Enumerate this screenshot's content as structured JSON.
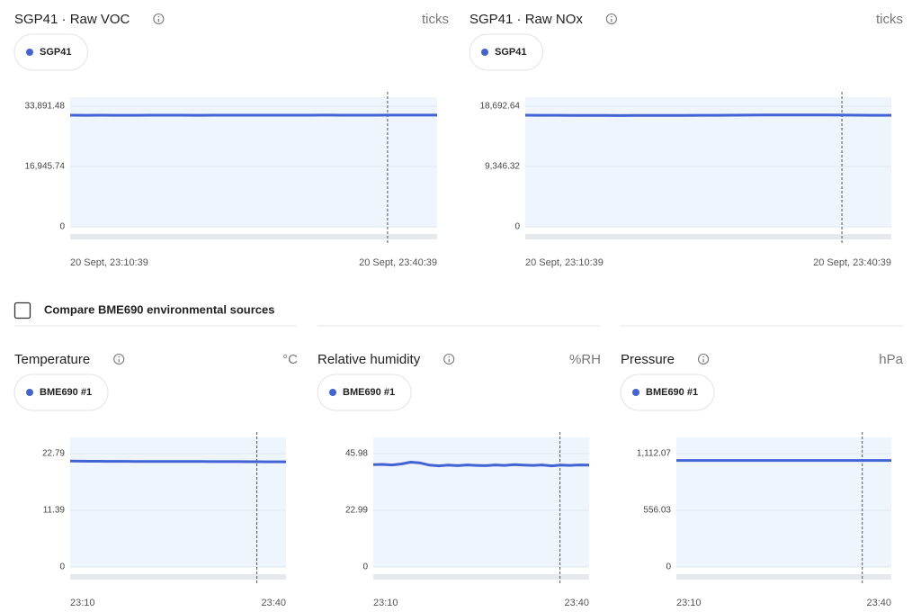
{
  "compare_label": "Compare BME690 environmental sources",
  "chart_data": [
    {
      "type": "line",
      "title": "SGP41 · Raw VOC",
      "unit": "ticks",
      "categories": [
        "20 Sept, 23:10:39",
        null,
        null,
        null,
        null,
        null,
        null,
        null,
        null,
        null,
        null,
        null,
        null,
        null,
        null,
        null,
        null,
        null,
        null,
        null,
        null,
        null,
        null,
        "20 Sept, 23:40:39"
      ],
      "series": [
        {
          "name": "SGP41",
          "color": "#4263d3",
          "values": [
            31360,
            31340,
            31350,
            31330,
            31340,
            31350,
            31360,
            31350,
            31340,
            31350,
            31360,
            31370,
            31360,
            31350,
            31360,
            31370,
            31380,
            31370,
            31360,
            31370,
            31380,
            31390,
            31380,
            31390
          ]
        }
      ],
      "ylim": [
        0,
        36420
      ],
      "yticks": [
        0,
        {
          "value": 16945.74,
          "label": "16,945.74"
        },
        {
          "value": 33891.48,
          "label": "33,891.48"
        }
      ]
    },
    {
      "type": "line",
      "title": "SGP41 · Raw NOx",
      "unit": "ticks",
      "categories": [
        "20 Sept, 23:10:39",
        null,
        null,
        null,
        null,
        null,
        null,
        null,
        null,
        null,
        null,
        null,
        null,
        null,
        null,
        null,
        null,
        null,
        null,
        null,
        null,
        null,
        null,
        "20 Sept, 23:40:39"
      ],
      "series": [
        {
          "name": "SGP41",
          "color": "#4263d3",
          "values": [
            17300,
            17290,
            17280,
            17270,
            17260,
            17250,
            17240,
            17250,
            17260,
            17270,
            17270,
            17280,
            17290,
            17300,
            17310,
            17320,
            17330,
            17340,
            17330,
            17320,
            17310,
            17300,
            17290,
            17280
          ]
        }
      ],
      "ylim": [
        0,
        20088
      ],
      "yticks": [
        0,
        {
          "value": 9346.32,
          "label": "9,346.32"
        },
        {
          "value": 18692.64,
          "label": "18,692.64"
        }
      ]
    },
    {
      "type": "line",
      "title": "Temperature",
      "unit": "°C",
      "categories": [
        "23:10",
        null,
        null,
        null,
        null,
        null,
        null,
        null,
        null,
        null,
        null,
        null,
        null,
        null,
        null,
        null,
        null,
        null,
        null,
        null,
        null,
        null,
        null,
        "23:40"
      ],
      "series": [
        {
          "name": "BME690 #1",
          "color": "#4263d3",
          "values": [
            21.3,
            21.28,
            21.25,
            21.25,
            21.24,
            21.23,
            21.23,
            21.22,
            21.22,
            21.21,
            21.21,
            21.21,
            21.2,
            21.2,
            21.2,
            21.19,
            21.19,
            21.18,
            21.18,
            21.17,
            21.16,
            21.15,
            21.14,
            21.14
          ]
        }
      ],
      "ylim": [
        0,
        26.05
      ],
      "yticks": [
        0,
        11.39,
        22.79
      ]
    },
    {
      "type": "line",
      "title": "Relative humidity",
      "unit": "%RH",
      "categories": [
        "23:10",
        null,
        null,
        null,
        null,
        null,
        null,
        null,
        null,
        null,
        null,
        null,
        null,
        null,
        null,
        null,
        null,
        null,
        null,
        null,
        null,
        null,
        null,
        "23:40"
      ],
      "series": [
        {
          "name": "BME690 #1",
          "color": "#4263d3",
          "values": [
            41.5,
            41.6,
            41.4,
            41.8,
            42.5,
            42.2,
            41.3,
            41.0,
            41.3,
            41.1,
            41.4,
            41.2,
            41.1,
            41.4,
            41.2,
            41.5,
            41.3,
            41.2,
            41.4,
            41.0,
            41.3,
            41.2,
            41.4,
            41.3
          ]
        }
      ],
      "ylim": [
        0,
        52.55
      ],
      "yticks": [
        0,
        22.99,
        45.98
      ]
    },
    {
      "type": "line",
      "title": "Pressure",
      "unit": "hPa",
      "categories": [
        "23:10",
        null,
        null,
        null,
        null,
        null,
        null,
        null,
        null,
        null,
        null,
        null,
        null,
        null,
        null,
        null,
        null,
        null,
        null,
        null,
        null,
        null,
        null,
        "23:40"
      ],
      "series": [
        {
          "name": "BME690 #1",
          "color": "#4263d3",
          "values": [
            1045,
            1045,
            1045,
            1045,
            1045,
            1045,
            1045,
            1045,
            1045,
            1045,
            1045,
            1045,
            1045,
            1045,
            1045,
            1045,
            1045,
            1045,
            1045,
            1045,
            1045,
            1045,
            1045,
            1045
          ]
        }
      ],
      "ylim": [
        0,
        1271
      ],
      "yticks": [
        0,
        556.03,
        {
          "value": 1112.07,
          "label": "1,112.07"
        }
      ]
    }
  ]
}
